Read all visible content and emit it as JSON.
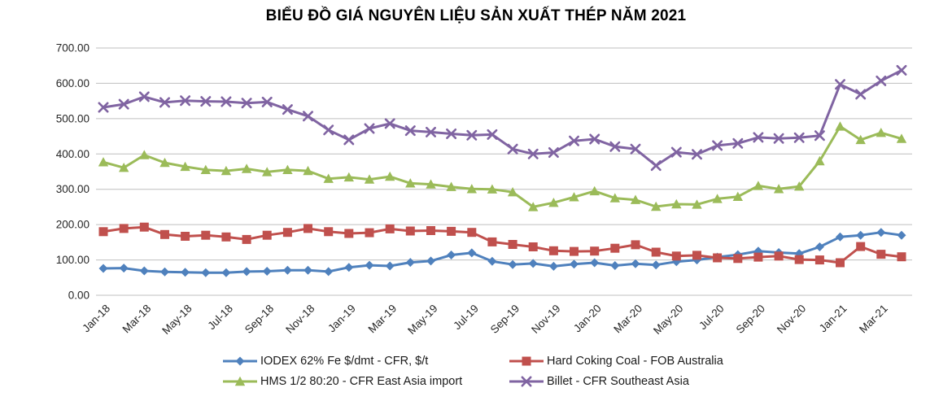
{
  "title": "BIỂU ĐỒ GIÁ NGUYÊN LIỆU SẢN XUẤT THÉP NĂM 2021",
  "colors": {
    "grid": "#BFBFBF",
    "axis_text": "#262626",
    "background": "#FFFFFF",
    "iodex_blue": "#4F81BD",
    "coal_red": "#C0504D",
    "hms_green": "#9BBB59",
    "billet_purple": "#8064A2"
  },
  "chart_data": {
    "type": "line",
    "title": "BIỂU ĐỒ GIÁ NGUYÊN LIỆU SẢN XUẤT THÉP NĂM 2021",
    "grid": true,
    "legend_position": "bottom",
    "ylim": [
      0,
      700
    ],
    "y_tick_step": 100,
    "y_tick_labels": [
      "700.00",
      "600.00",
      "500.00",
      "400.00",
      "300.00",
      "200.00",
      "100.00",
      "0.00"
    ],
    "x_tick_labels": [
      "Jan-18",
      "Mar-18",
      "May-18",
      "Jul-18",
      "Sep-18",
      "Nov-18",
      "Jan-19",
      "Mar-19",
      "May-19",
      "Jul-19",
      "Sep-19",
      "Nov-19",
      "Jan-20",
      "Mar-20",
      "May-20",
      "Jul-20",
      "Sep-20",
      "Nov-20",
      "Jan-21",
      "Mar-21"
    ],
    "categories": [
      "Jan-18",
      "Feb-18",
      "Mar-18",
      "Apr-18",
      "May-18",
      "Jun-18",
      "Jul-18",
      "Aug-18",
      "Sep-18",
      "Oct-18",
      "Nov-18",
      "Dec-18",
      "Jan-19",
      "Feb-19",
      "Mar-19",
      "Apr-19",
      "May-19",
      "Jun-19",
      "Jul-19",
      "Aug-19",
      "Sep-19",
      "Oct-19",
      "Nov-19",
      "Dec-19",
      "Jan-20",
      "Feb-20",
      "Mar-20",
      "Apr-20",
      "May-20",
      "Jun-20",
      "Jul-20",
      "Aug-20",
      "Sep-20",
      "Oct-20",
      "Nov-20",
      "Dec-20",
      "Jan-21",
      "Feb-21",
      "Mar-21",
      "Apr-21"
    ],
    "series": [
      {
        "name": "IODEX 62% Fe $/dmt - CFR, $/t",
        "color": "#4F81BD",
        "marker": "diamond",
        "values": [
          76,
          77,
          69,
          66,
          65,
          64,
          64,
          67,
          68,
          71,
          71,
          67,
          79,
          85,
          83,
          93,
          97,
          114,
          120,
          96,
          87,
          90,
          82,
          88,
          92,
          84,
          89,
          86,
          95,
          100,
          108,
          115,
          125,
          121,
          118,
          137,
          165,
          170,
          178,
          170
        ]
      },
      {
        "name": "Hard Coking Coal - FOB Australia",
        "color": "#C0504D",
        "marker": "square",
        "values": [
          180,
          189,
          193,
          172,
          167,
          170,
          165,
          158,
          170,
          178,
          189,
          180,
          175,
          177,
          188,
          182,
          183,
          181,
          178,
          151,
          144,
          137,
          126,
          124,
          125,
          133,
          143,
          122,
          111,
          113,
          106,
          104,
          108,
          111,
          101,
          100,
          92,
          138,
          116,
          109
        ]
      },
      {
        "name": "HMS 1/2 80:20 - CFR East Asia import",
        "color": "#9BBB59",
        "marker": "triangle",
        "values": [
          377,
          361,
          397,
          375,
          364,
          355,
          352,
          358,
          349,
          355,
          352,
          330,
          334,
          328,
          336,
          317,
          314,
          307,
          301,
          300,
          292,
          250,
          262,
          278,
          295,
          275,
          270,
          251,
          258,
          257,
          273,
          279,
          310,
          301,
          308,
          380,
          478,
          440,
          460,
          443
        ]
      },
      {
        "name": "Billet - CFR Southeast Asia",
        "color": "#8064A2",
        "marker": "x",
        "values": [
          532,
          541,
          562,
          546,
          551,
          549,
          548,
          544,
          547,
          526,
          507,
          468,
          440,
          472,
          486,
          466,
          462,
          457,
          453,
          455,
          414,
          400,
          404,
          437,
          442,
          421,
          414,
          367,
          405,
          399,
          424,
          430,
          447,
          444,
          446,
          452,
          597,
          569,
          607,
          637
        ]
      }
    ]
  }
}
